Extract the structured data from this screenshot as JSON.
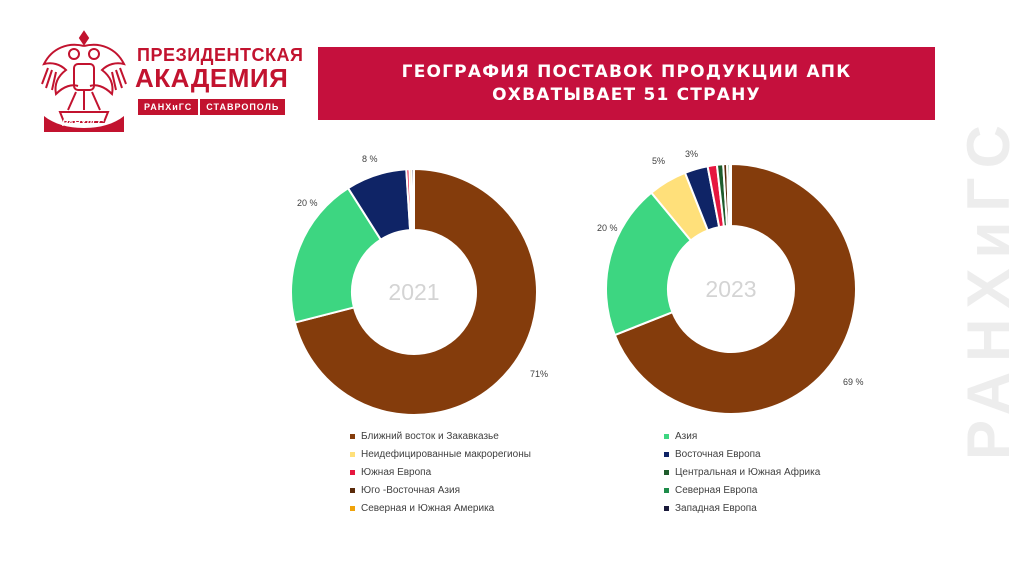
{
  "brand": {
    "line1": "ПРЕЗИДЕНТСКАЯ",
    "line2": "АКАДЕМИЯ",
    "tag1": "РАНХиГС",
    "tag2": "СТАВРОПОЛЬ",
    "emblem_text": "РАНХиГС",
    "accent_color": "#c2132f"
  },
  "title": "ГЕОГРАФИЯ ПОСТАВОК ПРОДУКЦИИ АПК ОХВАТЫВАЕТ 51 СТРАНУ",
  "watermark": "РАНХиГС",
  "chart_data": [
    {
      "type": "pie",
      "center_label": "2021",
      "slices": [
        {
          "name": "Ближний восток и Закавказье",
          "value": 71,
          "label": "71%",
          "color": "#843c0c"
        },
        {
          "name": "Азия",
          "value": 20,
          "label": "20 %",
          "color": "#3dd681"
        },
        {
          "name": "Восточная Европа",
          "value": 8,
          "label": "8 %",
          "color": "#0f2466"
        },
        {
          "name": "Южная Европа",
          "value": 0.4,
          "label": "",
          "color": "#e6173f"
        },
        {
          "name": "Северная и Южная Америка",
          "value": 0.3,
          "label": "",
          "color": "#f0a30a"
        },
        {
          "name": "Западная Европа",
          "value": 0.3,
          "label": "",
          "color": "#1a1a3a"
        }
      ]
    },
    {
      "type": "pie",
      "center_label": "2023",
      "slices": [
        {
          "name": "Ближний восток и Закавказье",
          "value": 69,
          "label": "69 %",
          "color": "#843c0c"
        },
        {
          "name": "Азия",
          "value": 20,
          "label": "20 %",
          "color": "#3dd681"
        },
        {
          "name": "Неидефицированные макрорегионы",
          "value": 5,
          "label": "5%",
          "color": "#ffe07a"
        },
        {
          "name": "Восточная Европа",
          "value": 3,
          "label": "3%",
          "color": "#0f2466"
        },
        {
          "name": "Южная Европа",
          "value": 1.2,
          "label": "",
          "color": "#e6173f"
        },
        {
          "name": "Центральная и Южная Африка",
          "value": 0.8,
          "label": "",
          "color": "#1f5c2c"
        },
        {
          "name": "Юго -Восточная Азия",
          "value": 0.5,
          "label": "",
          "color": "#5a2a0a"
        },
        {
          "name": "Северная Европа",
          "value": 0.3,
          "label": "",
          "color": "#1e8c4a"
        },
        {
          "name": "Северная и Южная Америка",
          "value": 0.2,
          "label": "",
          "color": "#f0a30a"
        }
      ]
    }
  ],
  "legend": [
    {
      "label": "Ближний восток и Закавказье",
      "color": "#843c0c"
    },
    {
      "label": "Азия",
      "color": "#3dd681"
    },
    {
      "label": "Неидефицированные макрорегионы",
      "color": "#ffe07a"
    },
    {
      "label": "Восточная Европа",
      "color": "#0f2466"
    },
    {
      "label": "Южная Европа",
      "color": "#e6173f"
    },
    {
      "label": "Центральная и Южная Африка",
      "color": "#1f5c2c"
    },
    {
      "label": "Юго -Восточная Азия",
      "color": "#5a2a0a"
    },
    {
      "label": "Северная Европа",
      "color": "#1e8c4a"
    },
    {
      "label": "Северная и Южная Америка",
      "color": "#f0a30a"
    },
    {
      "label": "Западная Европа",
      "color": "#1a1a3a"
    }
  ]
}
